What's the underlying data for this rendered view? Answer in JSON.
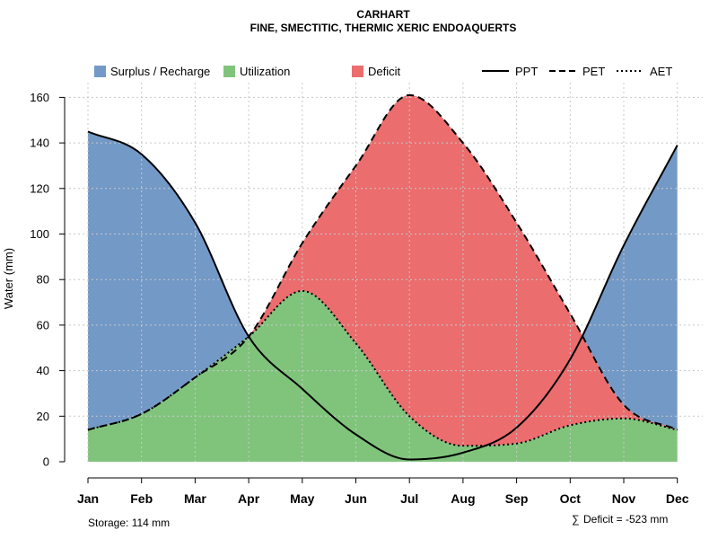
{
  "chart_data": {
    "type": "area",
    "title": "CARHART",
    "subtitle": "FINE, SMECTITIC, THERMIC XERIC ENDOAQUERTS",
    "xlabel": "",
    "ylabel": "Water (mm)",
    "categories": [
      "Jan",
      "Feb",
      "Mar",
      "Apr",
      "May",
      "Jun",
      "Jul",
      "Aug",
      "Sep",
      "Oct",
      "Nov",
      "Dec"
    ],
    "ylim": [
      0,
      165
    ],
    "yticks": [
      0,
      20,
      40,
      60,
      80,
      100,
      120,
      140,
      160
    ],
    "grid": true,
    "legend_position": "top",
    "series": [
      {
        "name": "PPT",
        "style": "solid",
        "values": [
          145,
          135,
          105,
          55,
          32,
          12,
          1,
          4,
          15,
          45,
          95,
          139
        ]
      },
      {
        "name": "PET",
        "style": "dashed",
        "values": [
          14,
          21,
          37,
          55,
          96,
          130,
          161,
          140,
          105,
          65,
          25,
          14
        ]
      },
      {
        "name": "AET",
        "style": "dotted",
        "values": [
          14,
          21,
          37,
          55,
          75,
          52,
          20,
          7,
          8,
          16,
          19,
          14
        ]
      }
    ],
    "areas": [
      {
        "name": "Surplus / Recharge",
        "color": "#7399C6"
      },
      {
        "name": "Utilization",
        "color": "#80C47C"
      },
      {
        "name": "Deficit",
        "color": "#EB6D6E"
      }
    ],
    "annotations": {
      "storage": "Storage: 114 mm",
      "deficit_symbol": "∑",
      "deficit": "Deficit = -523 mm"
    }
  }
}
